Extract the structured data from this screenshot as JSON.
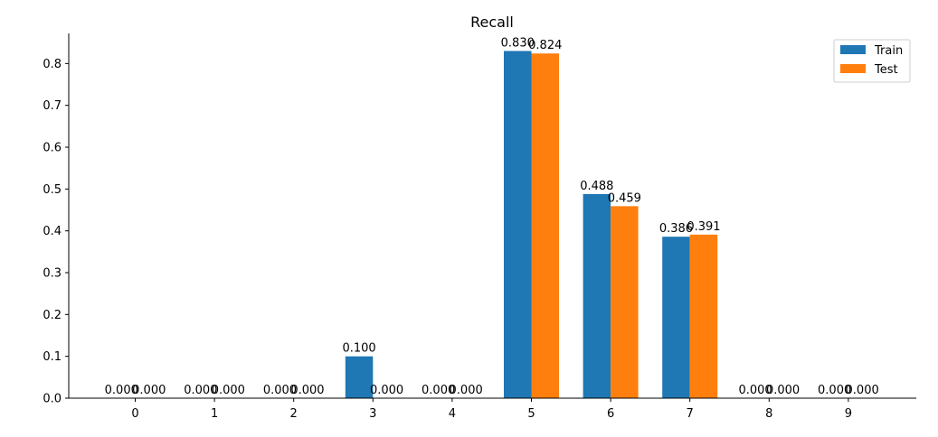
{
  "chart_data": {
    "type": "bar",
    "title": "Recall",
    "xlabel": "",
    "ylabel": "",
    "categories": [
      "0",
      "1",
      "2",
      "3",
      "4",
      "5",
      "6",
      "7",
      "8",
      "9"
    ],
    "series": [
      {
        "name": "Train",
        "color": "#1f77b4",
        "values": [
          0.0,
          0.0,
          0.0,
          0.1,
          0.0,
          0.83,
          0.488,
          0.386,
          0.0,
          0.0
        ],
        "labels": [
          "0.000",
          "0.000",
          "0.000",
          "0.100",
          "0.000",
          "0.830",
          "0.488",
          "0.386",
          "0.000",
          "0.000"
        ]
      },
      {
        "name": "Test",
        "color": "#ff7f0e",
        "values": [
          0.0,
          0.0,
          0.0,
          0.0,
          0.0,
          0.824,
          0.459,
          0.391,
          0.0,
          0.0
        ],
        "labels": [
          "0.000",
          "0.000",
          "0.000",
          "0.000",
          "0.000",
          "0.824",
          "0.459",
          "0.391",
          "0.000",
          "0.000"
        ]
      }
    ],
    "ylim": [
      0,
      0.872
    ],
    "yticks": [
      0.0,
      0.1,
      0.2,
      0.3,
      0.4,
      0.5,
      0.6,
      0.7,
      0.8
    ],
    "ytick_labels": [
      "0.0",
      "0.1",
      "0.2",
      "0.3",
      "0.4",
      "0.5",
      "0.6",
      "0.7",
      "0.8"
    ],
    "grid": false,
    "legend_position": "top-right"
  }
}
